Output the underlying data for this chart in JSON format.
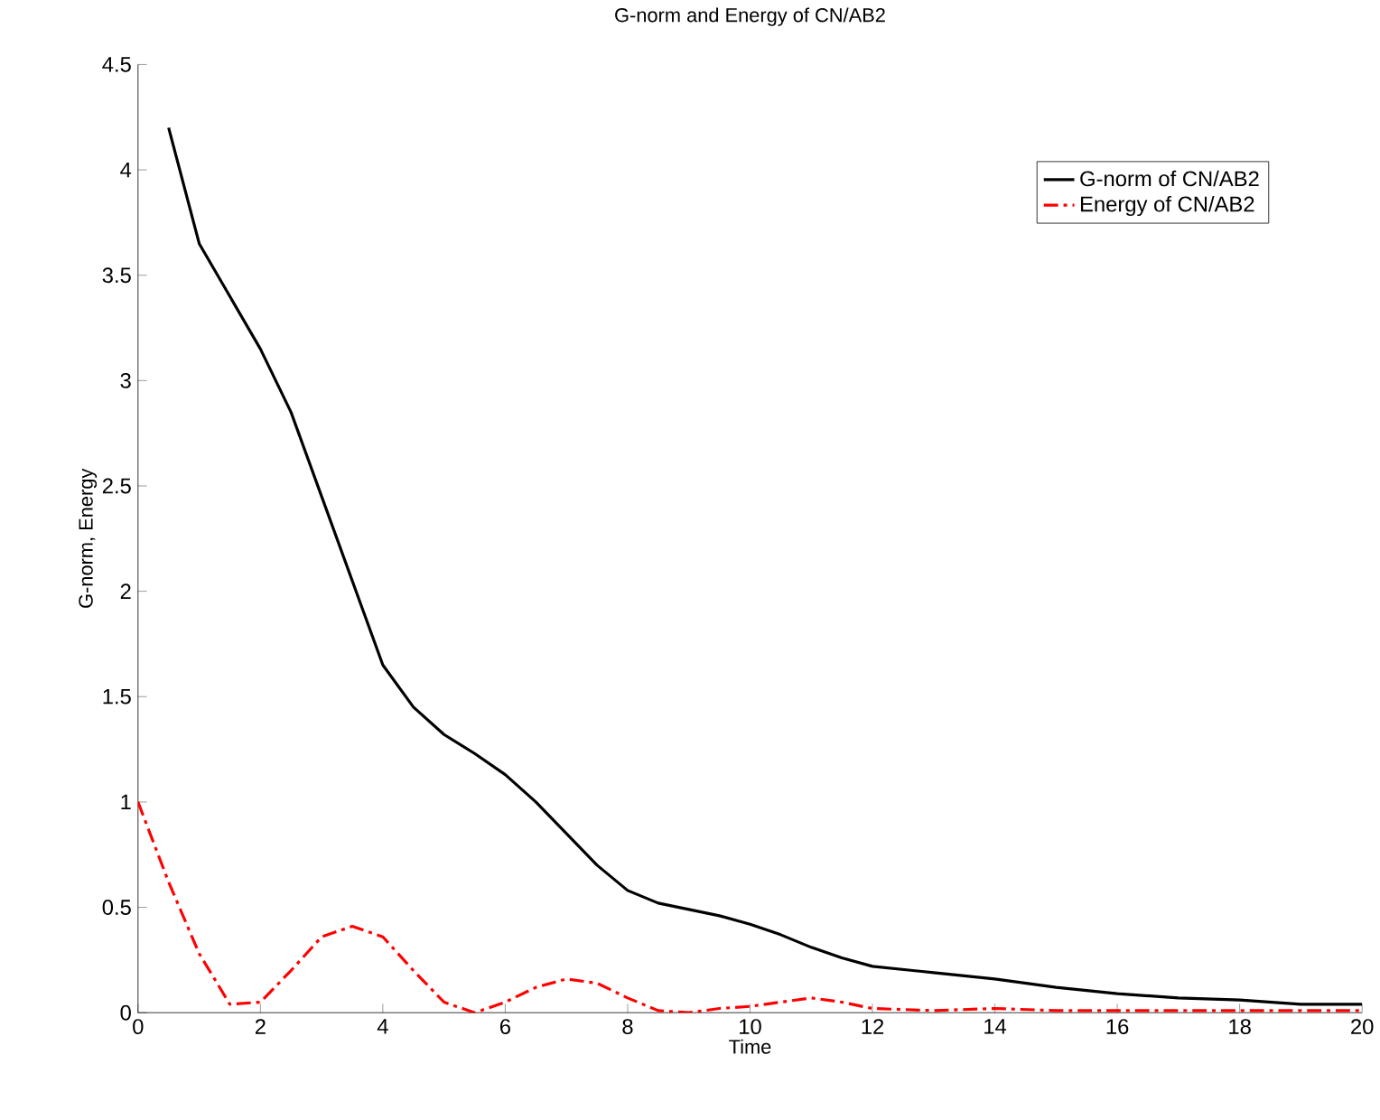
{
  "chart_data": {
    "type": "line",
    "title": "G-norm and Energy  of CN/AB2",
    "xlabel": "Time",
    "ylabel": "G-norm, Energy",
    "xlim": [
      0,
      20
    ],
    "ylim": [
      0,
      4.5
    ],
    "xticks": [
      0,
      2,
      4,
      6,
      8,
      10,
      12,
      14,
      16,
      18,
      20
    ],
    "yticks": [
      0,
      0.5,
      1,
      1.5,
      2,
      2.5,
      3,
      3.5,
      4,
      4.5
    ],
    "grid": false,
    "legend": "top right",
    "series": [
      {
        "name": "G-norm of CN/AB2",
        "color": "#000000",
        "line_style": "solid",
        "x": [
          0.5,
          1,
          1.5,
          2,
          2.5,
          3,
          3.5,
          4,
          4.5,
          5,
          5.5,
          6,
          6.5,
          7,
          7.5,
          8,
          8.5,
          9,
          9.5,
          10,
          10.5,
          11,
          11.5,
          12,
          13,
          14,
          15,
          16,
          17,
          18,
          19,
          20
        ],
        "values": [
          4.2,
          3.65,
          3.4,
          3.15,
          2.85,
          2.45,
          2.05,
          1.65,
          1.45,
          1.32,
          1.23,
          1.13,
          1.0,
          0.85,
          0.7,
          0.58,
          0.52,
          0.49,
          0.46,
          0.42,
          0.37,
          0.31,
          0.26,
          0.22,
          0.19,
          0.16,
          0.12,
          0.09,
          0.07,
          0.06,
          0.04,
          0.04
        ]
      },
      {
        "name": "Energy of CN/AB2",
        "color": "#ff0000",
        "line_style": "dashdot",
        "x": [
          0,
          0.5,
          1,
          1.5,
          2,
          2.5,
          3,
          3.5,
          4,
          4.5,
          5,
          5.5,
          6,
          6.5,
          7,
          7.5,
          8,
          8.5,
          9,
          9.5,
          10,
          10.5,
          11,
          11.5,
          12,
          13,
          14,
          15,
          16,
          17,
          18,
          19,
          20
        ],
        "values": [
          1.0,
          0.62,
          0.28,
          0.04,
          0.05,
          0.2,
          0.36,
          0.41,
          0.36,
          0.2,
          0.05,
          0.0,
          0.05,
          0.12,
          0.16,
          0.14,
          0.07,
          0.01,
          0.0,
          0.02,
          0.03,
          0.05,
          0.07,
          0.05,
          0.02,
          0.01,
          0.02,
          0.01,
          0.01,
          0.01,
          0.01,
          0.01,
          0.01
        ]
      }
    ]
  }
}
